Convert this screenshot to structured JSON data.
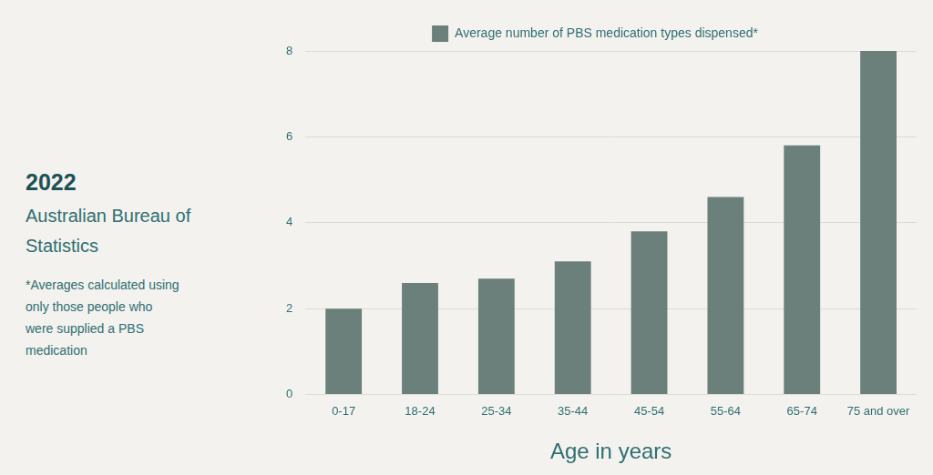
{
  "chart_data": {
    "type": "bar",
    "title": "2022",
    "subtitle": "Australian Bureau of Statistics",
    "annotations": [
      "*Averages calculated using only those people who were supplied a PBS medication"
    ],
    "xlabel": "Age in years",
    "categories": [
      "0-17",
      "18-24",
      "25-34",
      "35-44",
      "45-54",
      "55-64",
      "65-74",
      "75 and over"
    ],
    "series": [
      {
        "name": "Average number of PBS medication types dispensed*",
        "color": "#6b7f7b",
        "values": [
          2.0,
          2.6,
          2.7,
          3.1,
          3.8,
          4.6,
          5.8,
          8.0
        ]
      }
    ],
    "ylim": [
      0,
      8
    ],
    "yticks": [
      0,
      2,
      4,
      6,
      8
    ],
    "grid": true,
    "legend": "top"
  }
}
